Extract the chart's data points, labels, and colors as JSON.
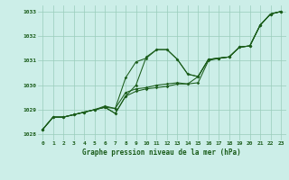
{
  "title": "Graphe pression niveau de la mer (hPa)",
  "bg_color": "#cceee8",
  "grid_color": "#99ccbb",
  "line_color": "#1a5c1a",
  "ylim": [
    1027.75,
    1033.25
  ],
  "yticks": [
    1028,
    1029,
    1030,
    1031,
    1032,
    1033
  ],
  "x_labels": [
    "0",
    "1",
    "2",
    "3",
    "4",
    "5",
    "6",
    "7",
    "8",
    "9",
    "10",
    "11",
    "12",
    "13",
    "14",
    "15",
    "16",
    "17",
    "18",
    "19",
    "20",
    "21",
    "22",
    "23"
  ],
  "series1": [
    1028.2,
    1028.7,
    1028.7,
    1028.8,
    1028.9,
    1029.0,
    1029.1,
    1028.85,
    1029.55,
    1029.75,
    1029.85,
    1029.9,
    1029.95,
    1030.05,
    1030.05,
    1030.1,
    1031.0,
    1031.1,
    1031.15,
    1031.55,
    1031.6,
    1032.45,
    1032.9,
    1033.0
  ],
  "series2": [
    1028.2,
    1028.7,
    1028.7,
    1028.8,
    1028.9,
    1029.0,
    1029.1,
    1028.85,
    1029.55,
    1030.0,
    1031.15,
    1031.45,
    1031.45,
    1031.05,
    1030.45,
    1030.35,
    1031.05,
    1031.1,
    1031.15,
    1031.55,
    1031.6,
    1032.45,
    1032.9,
    1033.0
  ],
  "series3": [
    1028.2,
    1028.7,
    1028.7,
    1028.8,
    1028.9,
    1029.0,
    1029.15,
    1029.05,
    1030.3,
    1030.95,
    1031.1,
    1031.45,
    1031.45,
    1031.05,
    1030.45,
    1030.35,
    1031.05,
    1031.1,
    1031.15,
    1031.55,
    1031.6,
    1032.45,
    1032.9,
    1033.0
  ],
  "series4": [
    1028.2,
    1028.7,
    1028.7,
    1028.8,
    1028.9,
    1029.0,
    1029.1,
    1029.05,
    1029.7,
    1029.85,
    1029.9,
    1030.0,
    1030.05,
    1030.1,
    1030.05,
    1030.35,
    1031.05,
    1031.1,
    1031.15,
    1031.55,
    1031.6,
    1032.45,
    1032.9,
    1033.0
  ]
}
